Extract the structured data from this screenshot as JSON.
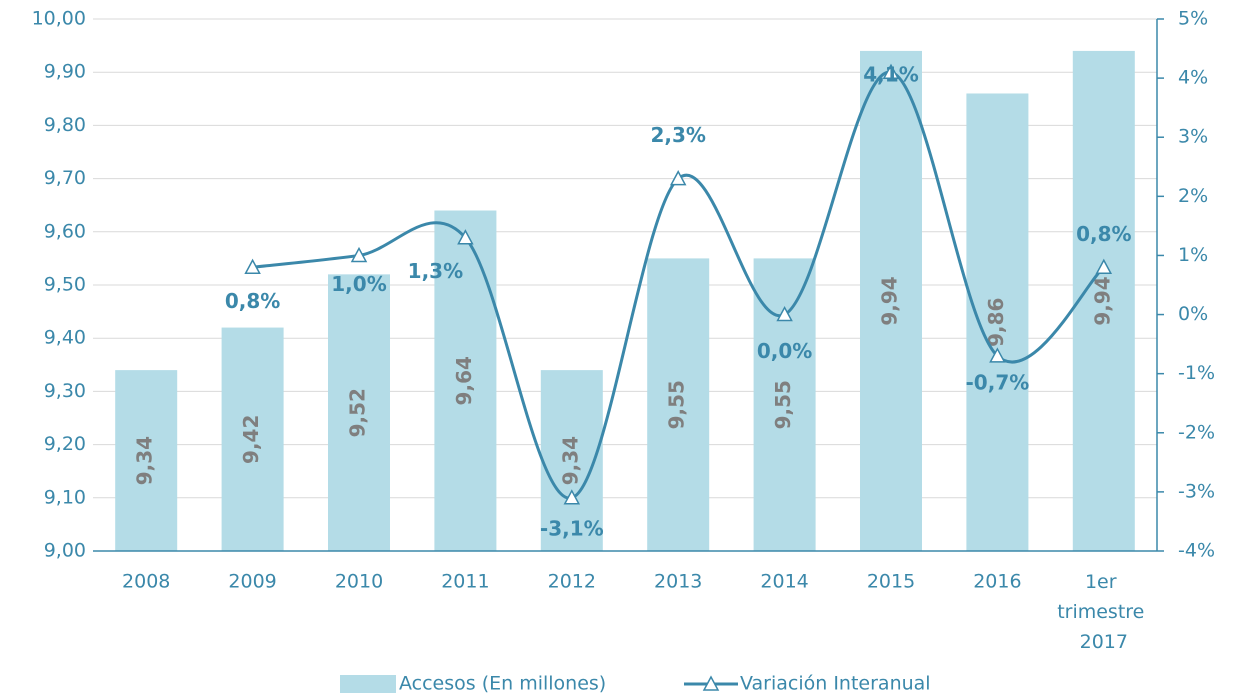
{
  "chart_data": {
    "type": "bar-line",
    "categories": [
      "2008",
      "2009",
      "2010",
      "2011",
      "2012",
      "2013",
      "2014",
      "2015",
      "2016",
      "1er trimestre 2017"
    ],
    "series": [
      {
        "name": "Accesos (En millones)",
        "color": "#b4dce7",
        "values": [
          9.34,
          9.42,
          9.52,
          9.64,
          9.34,
          9.55,
          9.55,
          9.94,
          9.86,
          9.94
        ],
        "value_labels": [
          "9,34",
          "9,42",
          "9,52",
          "9,64",
          "9,34",
          "9,55",
          "9,55",
          "9,94",
          "9,86",
          "9,94"
        ]
      },
      {
        "name": "Variación Interanual",
        "color": "#3b88aa",
        "axis": "y2",
        "values": [
          null,
          0.8,
          1.0,
          1.3,
          -3.1,
          2.3,
          0.0,
          4.1,
          -0.7,
          0.8
        ],
        "value_labels": [
          null,
          "0,8%",
          "1,0%",
          "1,3%",
          "-3,1%",
          "2,3%",
          "0,0%",
          "4,1%",
          "-0,7%",
          "0,8%"
        ]
      }
    ],
    "ylim": [
      9.0,
      10.0
    ],
    "yticks": [
      {
        "value": 9.0,
        "label": "9,00"
      },
      {
        "value": 9.1,
        "label": "9,10"
      },
      {
        "value": 9.2,
        "label": "9,20"
      },
      {
        "value": 9.3,
        "label": "9,30"
      },
      {
        "value": 9.4,
        "label": "9,40"
      },
      {
        "value": 9.5,
        "label": "9,50"
      },
      {
        "value": 9.6,
        "label": "9,60"
      },
      {
        "value": 9.7,
        "label": "9,70"
      },
      {
        "value": 9.8,
        "label": "9,80"
      },
      {
        "value": 9.9,
        "label": "9,90"
      },
      {
        "value": 10.0,
        "label": "10,00"
      }
    ],
    "y2lim": [
      -4,
      5
    ],
    "y2ticks": [
      {
        "value": -4,
        "label": "-4%"
      },
      {
        "value": -3,
        "label": "-3%"
      },
      {
        "value": -2,
        "label": "-2%"
      },
      {
        "value": -1,
        "label": "-1%"
      },
      {
        "value": 0,
        "label": "0%"
      },
      {
        "value": 1,
        "label": "1%"
      },
      {
        "value": 2,
        "label": "2%"
      },
      {
        "value": 3,
        "label": "3%"
      },
      {
        "value": 4,
        "label": "4%"
      },
      {
        "value": 5,
        "label": "5%"
      }
    ],
    "grid": true,
    "legend": "bottom"
  }
}
